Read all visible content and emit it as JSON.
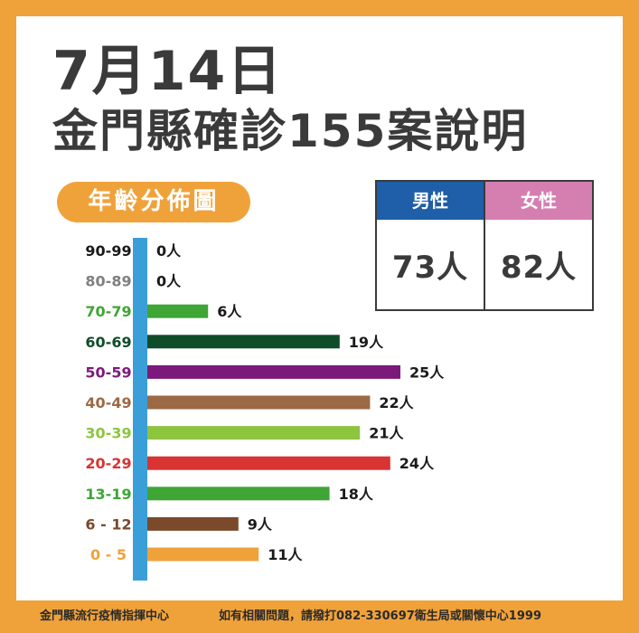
{
  "title": {
    "line1": "7月14日",
    "line2": "金門縣確診155案說明"
  },
  "section_label": "年齡分佈圖",
  "gender": {
    "male": {
      "label": "男性",
      "value": "73人",
      "color": "#1f5ea8"
    },
    "female": {
      "label": "女性",
      "value": "82人",
      "color": "#d57fb1"
    }
  },
  "colors": {
    "axis": "#3a9fd8",
    "frame": "#f0a23a"
  },
  "chart_data": {
    "type": "bar",
    "orientation": "horizontal",
    "categories": [
      "90-99",
      "80-89",
      "70-79",
      "60-69",
      "50-59",
      "40-49",
      "30-39",
      "20-29",
      "13-19",
      "6 - 12",
      "0 - 5"
    ],
    "values": [
      0,
      0,
      6,
      19,
      25,
      22,
      21,
      24,
      18,
      9,
      11
    ],
    "value_labels": [
      "0人",
      "0人",
      "6人",
      "19人",
      "25人",
      "22人",
      "21人",
      "24人",
      "18人",
      "9人",
      "11人"
    ],
    "colors": [
      "#1a1a1a",
      "#808080",
      "#3fa535",
      "#0f4d2a",
      "#7b1a7b",
      "#9b6a45",
      "#8dc53f",
      "#d93333",
      "#3fa535",
      "#7a4a2a",
      "#f0a23a"
    ]
  },
  "footer": {
    "left": "金門縣流行疫情指揮中心",
    "right": "如有相關問題，請撥打082-330697衛生局或關懷中心1999"
  }
}
